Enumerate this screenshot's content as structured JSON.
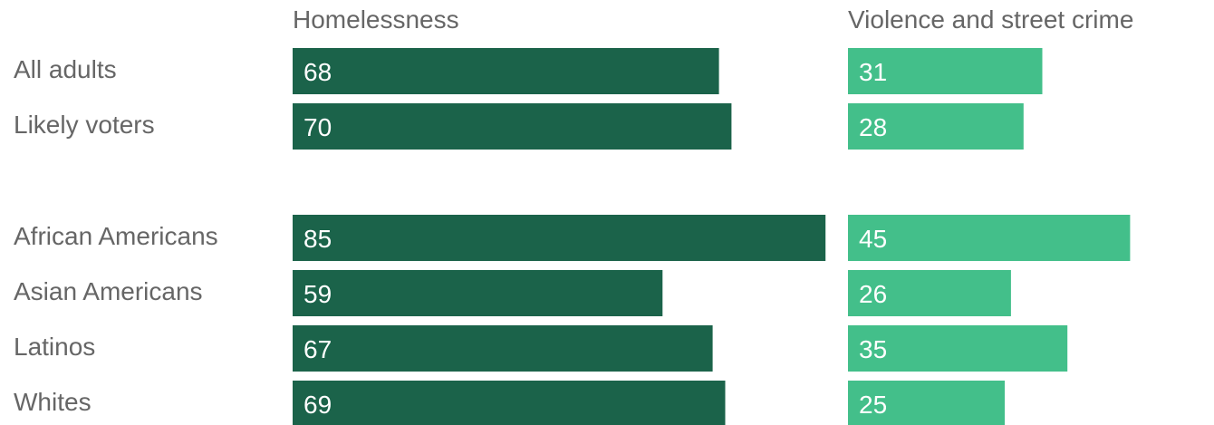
{
  "chart_data": {
    "type": "bar",
    "orientation": "horizontal",
    "categories": [
      "All adults",
      "Likely voters",
      "African Americans",
      "Asian Americans",
      "Latinos",
      "Whites"
    ],
    "category_groups": [
      [
        "All adults",
        "Likely voters"
      ],
      [
        "African Americans",
        "Asian Americans",
        "Latinos",
        "Whites"
      ]
    ],
    "series": [
      {
        "name": "Homelessness",
        "values": [
          68,
          70,
          85,
          59,
          67,
          69
        ],
        "color": "#1b634a"
      },
      {
        "name": "Violence and street crime",
        "values": [
          31,
          28,
          45,
          26,
          35,
          25
        ],
        "color": "#43bf8a"
      }
    ],
    "data_labels": true,
    "grid": false,
    "legend": "none"
  }
}
